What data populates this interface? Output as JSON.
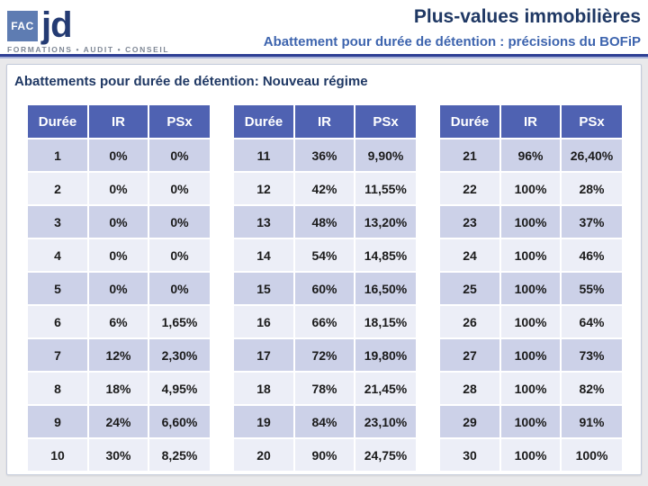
{
  "header": {
    "logo": {
      "fac": "FAC",
      "jd": "jd",
      "tagline": "FORMATIONS  •  AUDIT  •  CONSEIL"
    },
    "title": "Plus-values immobilières",
    "subtitle": "Abattement pour durée de détention : précisions du BOFiP"
  },
  "section_title": "Abattements pour durée de détention: Nouveau régime",
  "columns": [
    "Durée",
    "IR",
    "PSx"
  ],
  "tables": [
    {
      "rows": [
        [
          "1",
          "0%",
          "0%"
        ],
        [
          "2",
          "0%",
          "0%"
        ],
        [
          "3",
          "0%",
          "0%"
        ],
        [
          "4",
          "0%",
          "0%"
        ],
        [
          "5",
          "0%",
          "0%"
        ],
        [
          "6",
          "6%",
          "1,65%"
        ],
        [
          "7",
          "12%",
          "2,30%"
        ],
        [
          "8",
          "18%",
          "4,95%"
        ],
        [
          "9",
          "24%",
          "6,60%"
        ],
        [
          "10",
          "30%",
          "8,25%"
        ]
      ]
    },
    {
      "rows": [
        [
          "11",
          "36%",
          "9,90%"
        ],
        [
          "12",
          "42%",
          "11,55%"
        ],
        [
          "13",
          "48%",
          "13,20%"
        ],
        [
          "14",
          "54%",
          "14,85%"
        ],
        [
          "15",
          "60%",
          "16,50%"
        ],
        [
          "16",
          "66%",
          "18,15%"
        ],
        [
          "17",
          "72%",
          "19,80%"
        ],
        [
          "18",
          "78%",
          "21,45%"
        ],
        [
          "19",
          "84%",
          "23,10%"
        ],
        [
          "20",
          "90%",
          "24,75%"
        ]
      ]
    },
    {
      "rows": [
        [
          "21",
          "96%",
          "26,40%"
        ],
        [
          "22",
          "100%",
          "28%"
        ],
        [
          "23",
          "100%",
          "37%"
        ],
        [
          "24",
          "100%",
          "46%"
        ],
        [
          "25",
          "100%",
          "55%"
        ],
        [
          "26",
          "100%",
          "64%"
        ],
        [
          "27",
          "100%",
          "73%"
        ],
        [
          "28",
          "100%",
          "82%"
        ],
        [
          "29",
          "100%",
          "91%"
        ],
        [
          "30",
          "100%",
          "100%"
        ]
      ]
    }
  ],
  "colors": {
    "table_header": "#4f62b2",
    "row_dark": "#ccd1e8",
    "row_light": "#eceef7",
    "title_navy": "#1f3864",
    "subtitle_blue": "#3d64ae",
    "divider_blue": "#2e3f94",
    "logo_square": "#5e7cb2",
    "tagline_gray": "#7e8795",
    "panel_border": "#c4cbdb",
    "slide_background": "#e9e9eb"
  }
}
